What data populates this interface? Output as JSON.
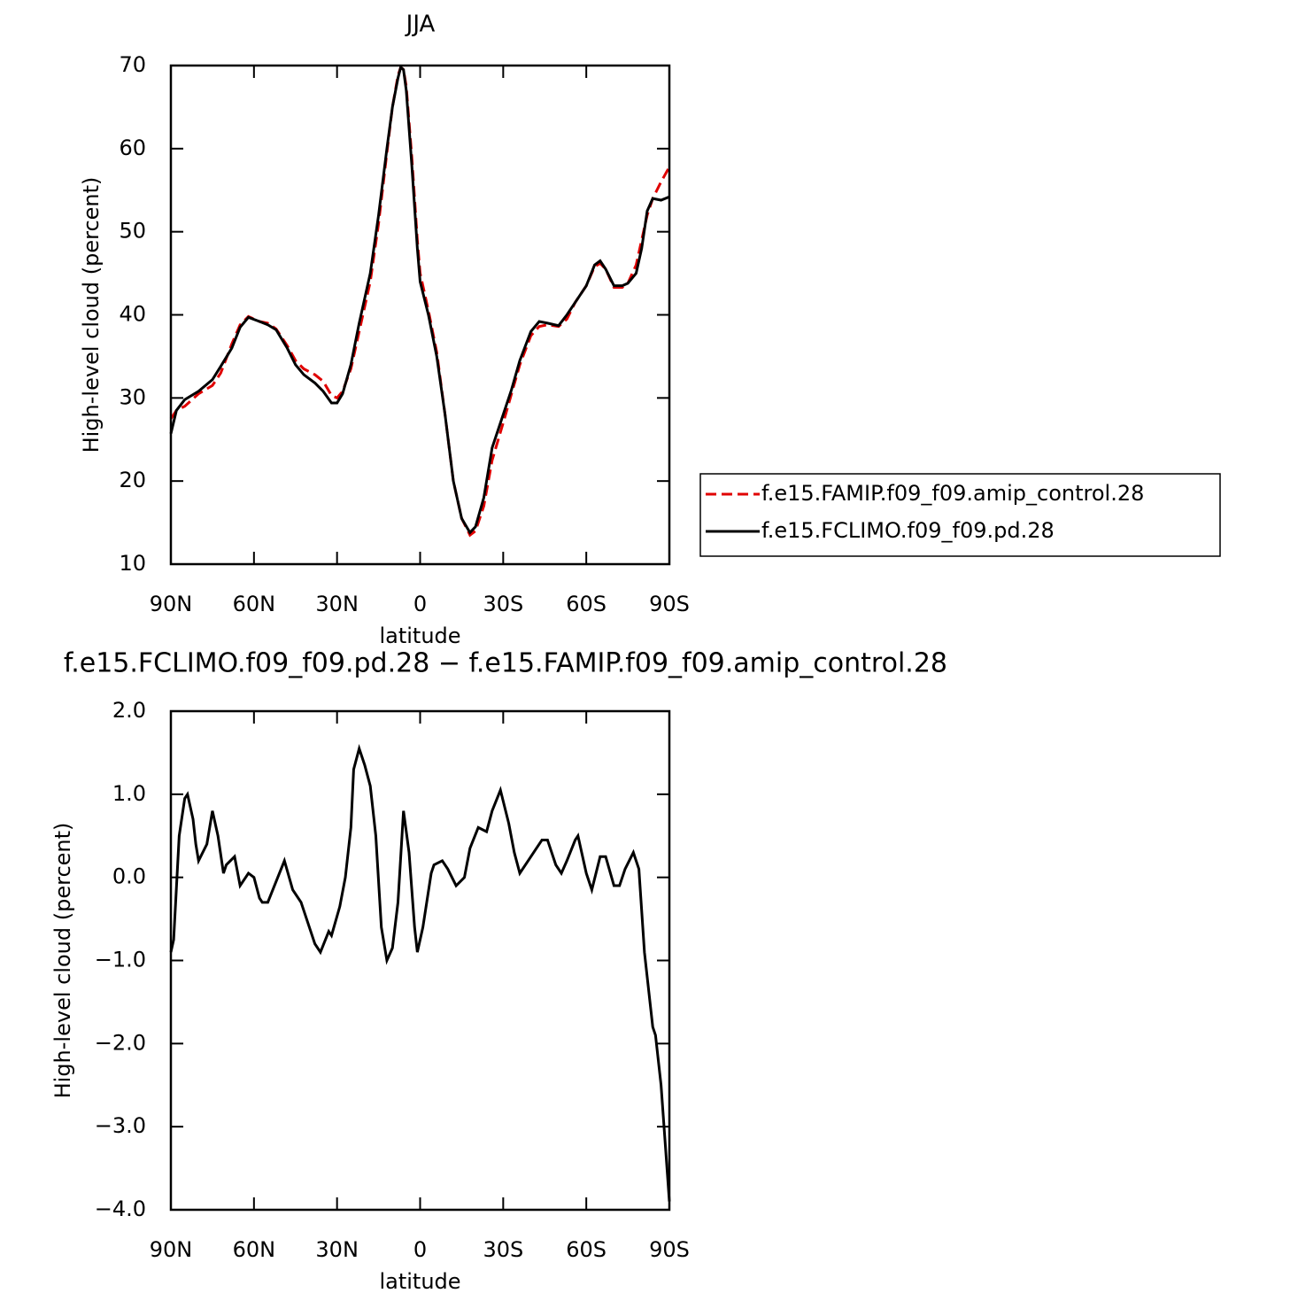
{
  "chart_data": [
    {
      "type": "line",
      "title": "JJA",
      "xlabel": "latitude",
      "ylabel": "High-level cloud (percent)",
      "x": [
        90,
        88,
        85,
        80,
        75,
        72,
        68,
        65,
        62,
        58,
        55,
        52,
        48,
        45,
        42,
        38,
        35,
        32,
        30,
        28,
        25,
        22,
        18,
        15,
        12,
        10,
        8,
        7,
        6,
        5,
        3,
        1,
        0,
        -3,
        -6,
        -9,
        -12,
        -15,
        -18,
        -20,
        -23,
        -26,
        -30,
        -33,
        -36,
        -40,
        -43,
        -46,
        -50,
        -53,
        -56,
        -60,
        -63,
        -65,
        -67,
        -70,
        -73,
        -75,
        -78,
        -80,
        -82,
        -84,
        -87,
        -90
      ],
      "series": [
        {
          "name": "f.e15.FAMIP.f09_f09.amip_control.28",
          "color": "#e00000",
          "style": "dashed",
          "values": [
            27.5,
            28.5,
            29,
            30.5,
            31.5,
            33,
            36.5,
            38.8,
            39.8,
            39.2,
            39,
            38.3,
            36.3,
            34.5,
            33.5,
            32.8,
            32,
            30.3,
            30,
            30.8,
            33.5,
            38,
            44,
            51,
            59.5,
            65,
            68.8,
            69.8,
            69.5,
            67.5,
            59,
            49,
            45,
            40.5,
            35.5,
            28,
            20,
            15.5,
            13.5,
            14,
            17,
            22.5,
            27,
            30.5,
            34,
            37.5,
            38.6,
            38.8,
            38.6,
            39.5,
            41.5,
            43.5,
            45.8,
            46.2,
            45.5,
            43.3,
            43.3,
            43.8,
            46,
            49,
            52,
            54,
            56,
            57.8
          ]
        },
        {
          "name": "f.e15.FCLIMO.f09_f09.pd.28",
          "color": "#000000",
          "style": "solid",
          "values": [
            25.7,
            28.5,
            29.8,
            30.8,
            32.2,
            33.8,
            36,
            38.5,
            39.7,
            39.2,
            38.8,
            38.2,
            36,
            34,
            32.8,
            31.8,
            30.8,
            29.4,
            29.4,
            30.5,
            34,
            39,
            45,
            52,
            60,
            65,
            68.5,
            69.8,
            69.5,
            67,
            58,
            48,
            44,
            40,
            35,
            28,
            20,
            15.5,
            13.8,
            14.5,
            18,
            24,
            28,
            31,
            34.5,
            38,
            39.2,
            39,
            38.7,
            40,
            41.5,
            43.5,
            46,
            46.5,
            45.5,
            43.5,
            43.5,
            43.8,
            45,
            48,
            52.5,
            54,
            53.8,
            54.2
          ]
        }
      ],
      "xlim": [
        90,
        -90
      ],
      "xticks": [
        {
          "value": 90,
          "label": "90N"
        },
        {
          "value": 60,
          "label": "60N"
        },
        {
          "value": 30,
          "label": "30N"
        },
        0,
        {
          "value": -30,
          "label": "30S"
        },
        {
          "value": -60,
          "label": "60S"
        },
        {
          "value": -90,
          "label": "90S"
        }
      ],
      "ylim": [
        10,
        70
      ],
      "yticks": [
        10,
        20,
        30,
        40,
        50,
        60,
        70
      ],
      "legend": "right"
    },
    {
      "type": "line",
      "title": "f.e15.FCLIMO.f09_f09.pd.28 − f.e15.FAMIP.f09_f09.amip_control.28",
      "xlabel": "latitude",
      "ylabel": "High-level cloud (percent)",
      "x": [
        90,
        89,
        87,
        85,
        84,
        82,
        81,
        80,
        77,
        75,
        73,
        71,
        70,
        67,
        65,
        62,
        60,
        58,
        57,
        55,
        52,
        49,
        46,
        43,
        41,
        38,
        36,
        33,
        32,
        29,
        27,
        25,
        24,
        22,
        20,
        18,
        16,
        14,
        12,
        10,
        8,
        6,
        4,
        2,
        1,
        -1,
        -4,
        -5,
        -8,
        -10,
        -13,
        -16,
        -18,
        -21,
        -24,
        -26,
        -29,
        -32,
        -34,
        -36,
        -39,
        -42,
        -44,
        -46,
        -49,
        -51,
        -53,
        -56,
        -57,
        -60,
        -62,
        -65,
        -67,
        -70,
        -72,
        -74,
        -77,
        -79,
        -81,
        -84,
        -85,
        -87,
        -90
      ],
      "series": [
        {
          "name": "f.e15.FCLIMO.f09_f09.pd.28",
          "color": "#000000",
          "style": "solid",
          "values": [
            -0.9,
            -0.75,
            0.5,
            0.95,
            1.0,
            0.7,
            0.4,
            0.2,
            0.4,
            0.8,
            0.5,
            0.05,
            0.15,
            0.25,
            -0.1,
            0.05,
            0,
            -0.25,
            -0.3,
            -0.3,
            -0.05,
            0.2,
            -0.15,
            -0.3,
            -0.5,
            -0.8,
            -0.9,
            -0.65,
            -0.7,
            -0.35,
            0,
            0.6,
            1.3,
            1.55,
            1.35,
            1.1,
            0.5,
            -0.6,
            -1.0,
            -0.85,
            -0.3,
            0.8,
            0.3,
            -0.6,
            -0.9,
            -0.6,
            0.05,
            0.15,
            0.2,
            0.1,
            -0.1,
            0,
            0.35,
            0.6,
            0.55,
            0.8,
            1.05,
            0.65,
            0.3,
            0.05,
            0.2,
            0.35,
            0.45,
            0.45,
            0.15,
            0.05,
            0.2,
            0.45,
            0.5,
            0.05,
            -0.15,
            0.25,
            0.25,
            -0.1,
            -0.1,
            0.1,
            0.3,
            0.1,
            -0.9,
            -1.8,
            -1.9,
            -2.5,
            -3.9
          ]
        }
      ],
      "xlim": [
        90,
        -90
      ],
      "xticks": [
        {
          "value": 90,
          "label": "90N"
        },
        {
          "value": 60,
          "label": "60N"
        },
        {
          "value": 30,
          "label": "30N"
        },
        0,
        {
          "value": -30,
          "label": "30S"
        },
        {
          "value": -60,
          "label": "60S"
        },
        {
          "value": -90,
          "label": "90S"
        }
      ],
      "ylim": [
        -4,
        2
      ],
      "yticks": [
        {
          "value": -4,
          "label": "−4.0"
        },
        {
          "value": -3,
          "label": "−3.0"
        },
        {
          "value": -2,
          "label": "−2.0"
        },
        {
          "value": -1,
          "label": "−1.0"
        },
        {
          "value": 0,
          "label": "0.0"
        },
        {
          "value": 1,
          "label": "1.0"
        },
        {
          "value": 2,
          "label": "2.0"
        }
      ]
    }
  ]
}
